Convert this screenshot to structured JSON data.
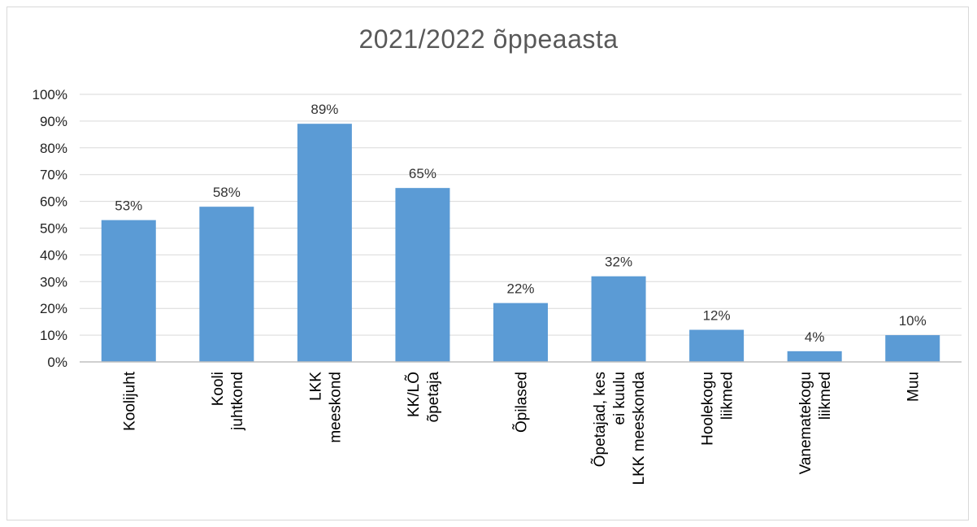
{
  "chart_data": {
    "type": "bar",
    "title": "2021/2022 õppeaasta",
    "categories": [
      [
        "Koolijuht"
      ],
      [
        "Kooli",
        "juhtkond"
      ],
      [
        "LKK",
        "meeskond"
      ],
      [
        "KK/LÕ",
        "õpetaja"
      ],
      [
        "Õpilased"
      ],
      [
        "Õpetajad, kes",
        "ei kuulu",
        "LKK meeskonda"
      ],
      [
        "Hoolekogu",
        "liikmed"
      ],
      [
        "Vanematekogu",
        "liikmed"
      ],
      [
        "Muu"
      ]
    ],
    "values": [
      53,
      58,
      89,
      65,
      22,
      32,
      12,
      4,
      10
    ],
    "data_labels": [
      "53%",
      "58%",
      "89%",
      "65%",
      "22%",
      "32%",
      "12%",
      "4%",
      "10%"
    ],
    "y_ticks": [
      "0%",
      "10%",
      "20%",
      "30%",
      "40%",
      "50%",
      "60%",
      "70%",
      "80%",
      "90%",
      "100%"
    ],
    "ylim": [
      0,
      100
    ],
    "grid": true,
    "bar_color": "#5b9bd5"
  }
}
